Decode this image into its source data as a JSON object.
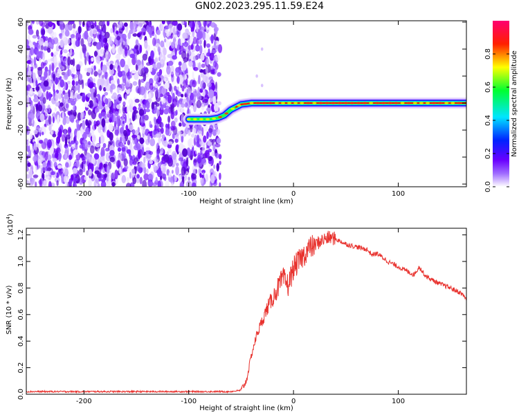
{
  "title": "GN02.2023.295.11.59.E24",
  "colors": {
    "trace": "#e8322e",
    "axis": "#000000",
    "background": "#ffffff"
  },
  "chart_data": [
    {
      "type": "heatmap",
      "title": "GN02.2023.295.11.59.E24",
      "xlabel": "Height of straight line (km)",
      "ylabel": "Frequency (Hz)",
      "xlim": [
        -255,
        165
      ],
      "ylim": [
        -62,
        61
      ],
      "xticks": [
        -200,
        -100,
        0,
        100
      ],
      "yticks": [
        60,
        40,
        20,
        0,
        -20,
        -40,
        -60
      ],
      "noise_region_x": [
        -255,
        -70
      ],
      "ridge": {
        "x": [
          -100,
          -90,
          -80,
          -72,
          -66,
          -60,
          -55,
          -50,
          -40,
          -20,
          0,
          20,
          40,
          60,
          80,
          100,
          165
        ],
        "y": [
          -12,
          -12,
          -12,
          -11,
          -9,
          -5,
          -3,
          -1,
          0,
          0,
          0,
          0,
          0,
          0,
          0,
          0,
          0
        ]
      },
      "colorbar": {
        "label": "Normalized spectral amplitude",
        "range": [
          0,
          1
        ],
        "ticks": [
          0.0,
          0.2,
          0.4,
          0.6,
          0.8
        ],
        "colors": [
          "#ffffff",
          "#7b00ff",
          "#0033ff",
          "#00ffff",
          "#00ff00",
          "#ffff00",
          "#ff0000",
          "#ff0080"
        ]
      }
    },
    {
      "type": "line",
      "xlabel": "Height of straight line (km)",
      "ylabel": "SNR (10 * v/v)",
      "yscale_label": "(x10",
      "yscale_exp": "4",
      "yscale_close": ")",
      "xlim": [
        -255,
        165
      ],
      "ylim": [
        0,
        1.25
      ],
      "xticks": [
        -200,
        -100,
        0,
        100
      ],
      "yticks": [
        0.0,
        0.2,
        0.4,
        0.6,
        0.8,
        1.0,
        1.2
      ],
      "series": [
        {
          "x": [
            -255,
            -200,
            -150,
            -100,
            -60,
            -50,
            -45,
            -40,
            -35,
            -30,
            -25,
            -20,
            -15,
            -10,
            -5,
            0,
            5,
            10,
            15,
            20,
            25,
            30,
            35,
            40,
            50,
            60,
            70,
            75,
            80,
            85,
            90,
            100,
            110,
            115,
            120,
            125,
            130,
            140,
            150,
            160,
            165
          ],
          "values": [
            0.02,
            0.02,
            0.02,
            0.02,
            0.02,
            0.03,
            0.1,
            0.3,
            0.45,
            0.55,
            0.65,
            0.72,
            0.8,
            0.87,
            0.82,
            0.95,
            1.0,
            1.05,
            1.1,
            1.12,
            1.15,
            1.17,
            1.18,
            1.17,
            1.13,
            1.11,
            1.09,
            1.05,
            1.06,
            1.03,
            1.0,
            0.96,
            0.92,
            0.9,
            0.96,
            0.9,
            0.87,
            0.83,
            0.8,
            0.76,
            0.72
          ]
        }
      ]
    }
  ]
}
